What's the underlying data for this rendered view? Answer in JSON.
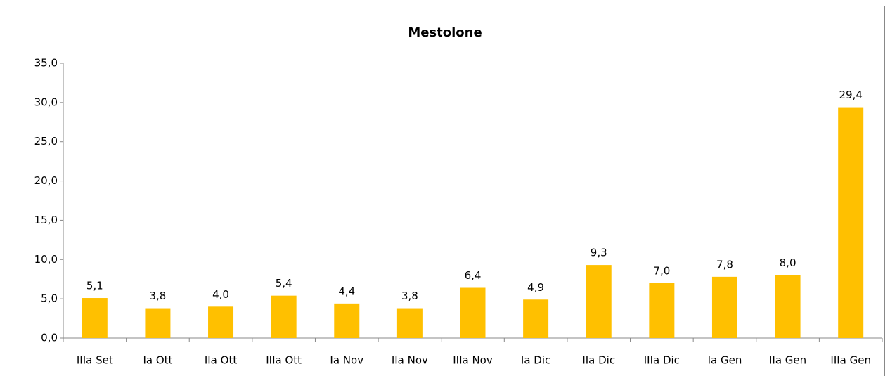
{
  "chart_data": {
    "type": "bar",
    "title": "Mestolone",
    "categories": [
      "IIIa Set",
      "Ia Ott",
      "IIa Ott",
      "IIIa Ott",
      "Ia Nov",
      "IIa Nov",
      "IIIa Nov",
      "Ia Dic",
      "IIa Dic",
      "IIIa Dic",
      "Ia Gen",
      "IIa Gen",
      "IIIa Gen"
    ],
    "values": [
      5.1,
      3.8,
      4.0,
      5.4,
      4.4,
      3.8,
      6.4,
      4.9,
      9.3,
      7.0,
      7.8,
      8.0,
      29.4
    ],
    "value_labels": [
      "5,1",
      "3,8",
      "4,0",
      "5,4",
      "4,4",
      "3,8",
      "6,4",
      "4,9",
      "9,3",
      "7,0",
      "7,8",
      "8,0",
      "29,4"
    ],
    "color": "#ffc000",
    "ylim": [
      0,
      35
    ],
    "yticks": [
      {
        "value": 0,
        "label": "0,0"
      },
      {
        "value": 5,
        "label": "5,0"
      },
      {
        "value": 10,
        "label": "10,0"
      },
      {
        "value": 15,
        "label": "15,0"
      },
      {
        "value": 20,
        "label": "20,0"
      },
      {
        "value": 25,
        "label": "25,0"
      },
      {
        "value": 30,
        "label": "30,0"
      },
      {
        "value": 35,
        "label": "35,0"
      }
    ],
    "grid": false
  }
}
